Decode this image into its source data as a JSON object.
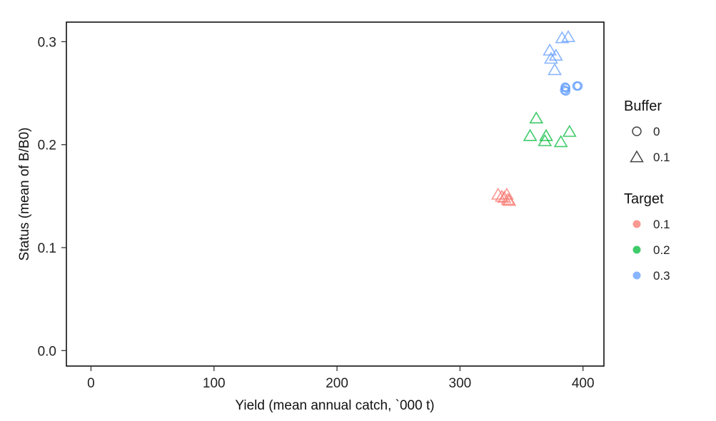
{
  "chart_data": {
    "type": "scatter",
    "xlabel": "Yield (mean annual catch, `000 t)",
    "ylabel": "Status (mean of B/B0)",
    "xlim": [
      -20,
      417
    ],
    "ylim": [
      -0.015,
      0.319
    ],
    "xticks": [
      0,
      100,
      200,
      300,
      400
    ],
    "yticks": [
      0.0,
      0.1,
      0.2,
      0.3
    ],
    "xtick_labels": [
      "0",
      "100",
      "200",
      "300",
      "400"
    ],
    "ytick_labels": [
      "0.0",
      "0.1",
      "0.2",
      "0.3"
    ],
    "grid": false,
    "legend_position": "right",
    "legends": [
      {
        "title": "Buffer",
        "items": [
          {
            "label": "0",
            "shape": "circle"
          },
          {
            "label": "0.1",
            "shape": "triangle"
          }
        ]
      },
      {
        "title": "Target",
        "items": [
          {
            "label": "0.1",
            "color": "#F8766D"
          },
          {
            "label": "0.2",
            "color": "#00BA38"
          },
          {
            "label": "0.3",
            "color": "#619CFF"
          }
        ]
      }
    ],
    "series": [
      {
        "target": "0.1",
        "buffer": "0.1",
        "color": "#F8766D",
        "shape": "triangle",
        "points": [
          [
            331,
            0.151
          ],
          [
            334,
            0.149
          ],
          [
            336,
            0.148
          ],
          [
            338,
            0.151
          ],
          [
            339,
            0.146
          ],
          [
            340,
            0.145
          ]
        ]
      },
      {
        "target": "0.2",
        "buffer": "0.1",
        "color": "#00BA38",
        "shape": "triangle",
        "points": [
          [
            357,
            0.208
          ],
          [
            362,
            0.225
          ],
          [
            369,
            0.203
          ],
          [
            370,
            0.208
          ],
          [
            382,
            0.202
          ],
          [
            389,
            0.212
          ]
        ]
      },
      {
        "target": "0.3",
        "buffer": "0.1",
        "color": "#619CFF",
        "shape": "triangle",
        "points": [
          [
            373,
            0.291
          ],
          [
            374,
            0.283
          ],
          [
            377,
            0.272
          ],
          [
            378,
            0.286
          ],
          [
            383,
            0.303
          ],
          [
            388,
            0.304
          ]
        ]
      },
      {
        "target": "0.3",
        "buffer": "0",
        "color": "#619CFF",
        "shape": "circle",
        "points": [
          [
            385,
            0.253
          ],
          [
            385.5,
            0.256
          ],
          [
            386,
            0.252
          ],
          [
            386,
            0.255
          ],
          [
            395,
            0.257
          ],
          [
            396,
            0.257
          ]
        ]
      }
    ]
  }
}
